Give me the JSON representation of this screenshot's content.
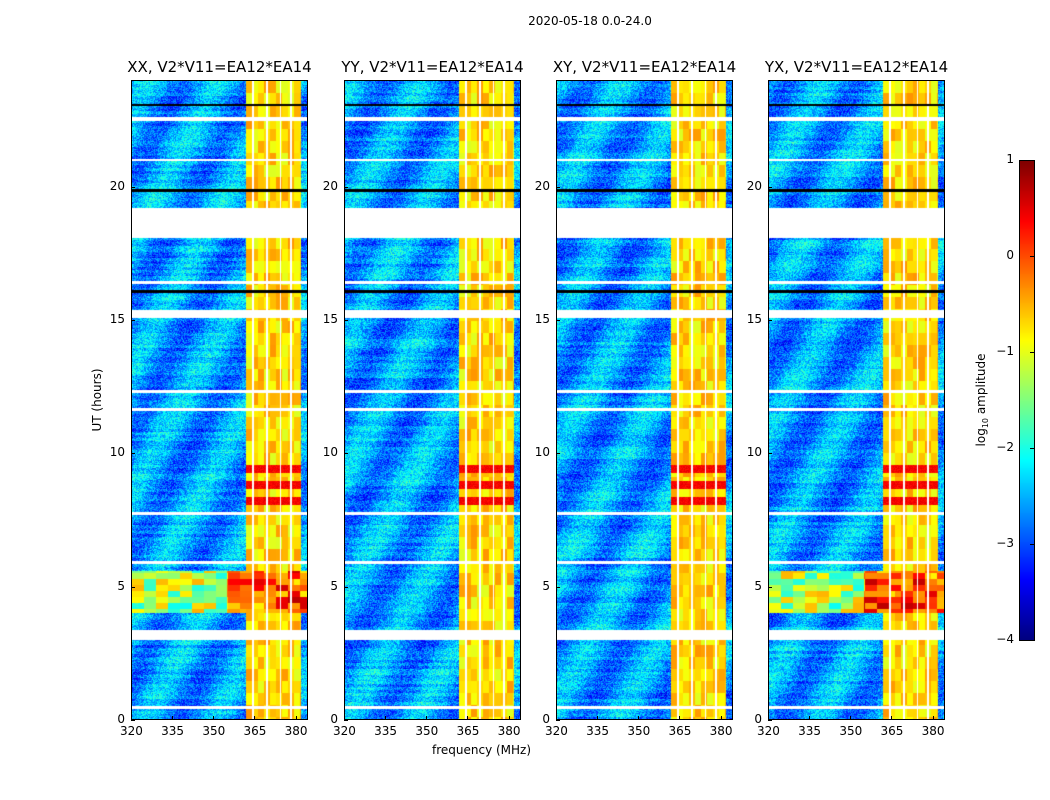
{
  "chart_data": {
    "type": "heatmap",
    "title": "2020-05-18 0.0-24.0",
    "xlabel": "frequency (MHz)",
    "ylabel": "UT (hours)",
    "xlim": [
      320,
      384.5
    ],
    "ylim": [
      0,
      24
    ],
    "xticks": [
      "320",
      "335",
      "350",
      "365",
      "380"
    ],
    "xtick_values": [
      320,
      335,
      350,
      365,
      380
    ],
    "yticks": [
      "0",
      "5",
      "10",
      "15",
      "20"
    ],
    "ytick_values": [
      0,
      5,
      10,
      15,
      20
    ],
    "panels": [
      {
        "title": "XX, V2*V11=EA12*EA14",
        "pol": "XX",
        "broadband_rfi": true
      },
      {
        "title": "YY, V2*V11=EA12*EA14",
        "pol": "YY",
        "broadband_rfi": false
      },
      {
        "title": "XY, V2*V11=EA12*EA14",
        "pol": "XY",
        "broadband_rfi": false
      },
      {
        "title": "YX, V2*V11=EA12*EA14",
        "pol": "YX",
        "broadband_rfi": true
      }
    ],
    "colorbar": {
      "label_prefix": "log",
      "label_sub": "10",
      "label_suffix": " amplitude",
      "range": [
        -4,
        1
      ],
      "ticks": [
        "1",
        "0",
        "−1",
        "−2",
        "−3",
        "−4"
      ],
      "tick_values": [
        1,
        0,
        -1,
        -2,
        -3,
        -4
      ],
      "colormap": "jet"
    },
    "background_level": -2.6,
    "rfi_band_mhz": [
      362,
      382
    ],
    "rfi_band_level": -0.7,
    "strong_interval_hours": [
      8.0,
      9.8
    ],
    "strong_level": 0.4,
    "broadband_interval_hours": [
      4.0,
      5.6
    ],
    "flagged_intervals_hours": [
      [
        18.1,
        19.25
      ],
      [
        22.5,
        22.65
      ],
      [
        3.0,
        3.35
      ],
      [
        15.1,
        15.4
      ],
      [
        5.85,
        5.95
      ],
      [
        12.3,
        12.4
      ],
      [
        0.4,
        0.5
      ],
      [
        11.6,
        11.7
      ],
      [
        7.7,
        7.8
      ],
      [
        16.4,
        16.5
      ],
      [
        21.0,
        21.1
      ]
    ],
    "black_lines_hours": [
      16.1,
      19.9,
      23.1
    ],
    "channel_gaps_mhz": [
      364.5,
      369.5,
      374.5,
      378.5
    ]
  }
}
